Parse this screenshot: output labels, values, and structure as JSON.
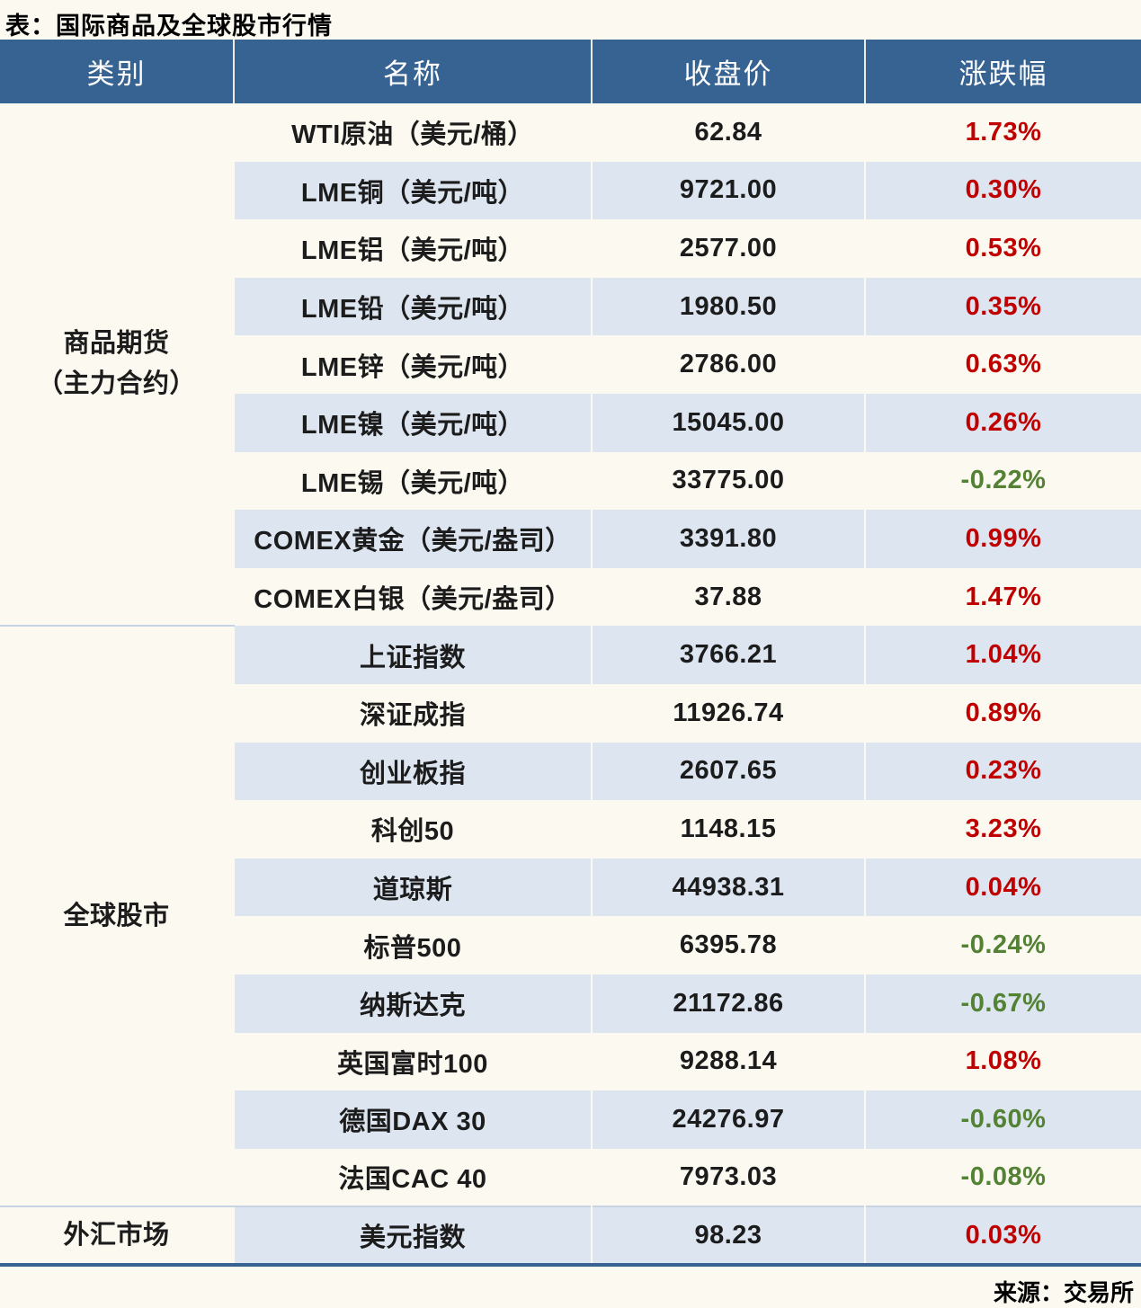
{
  "title": "表：国际商品及全球股市行情",
  "source": "来源：交易所",
  "headers": [
    "类别",
    "名称",
    "收盘价",
    "涨跌幅"
  ],
  "colors": {
    "header_bg": "#366391",
    "stripe_blue": "#dce5f0",
    "row_cream": "#fbf9f0",
    "positive_red": "#c00000",
    "negative_green": "#548235"
  },
  "groups": [
    {
      "category": "商品期货（主力合约）",
      "label_lines": [
        "商品期货",
        "（主力合约）"
      ],
      "rows": [
        {
          "name": "WTI原油（美元/桶）",
          "close": "62.84",
          "change": "1.73%",
          "direction": "up"
        },
        {
          "name": "LME铜（美元/吨）",
          "close": "9721.00",
          "change": "0.30%",
          "direction": "up"
        },
        {
          "name": "LME铝（美元/吨）",
          "close": "2577.00",
          "change": "0.53%",
          "direction": "up"
        },
        {
          "name": "LME铅（美元/吨）",
          "close": "1980.50",
          "change": "0.35%",
          "direction": "up"
        },
        {
          "name": "LME锌（美元/吨）",
          "close": "2786.00",
          "change": "0.63%",
          "direction": "up"
        },
        {
          "name": "LME镍（美元/吨）",
          "close": "15045.00",
          "change": "0.26%",
          "direction": "up"
        },
        {
          "name": "LME锡（美元/吨）",
          "close": "33775.00",
          "change": "-0.22%",
          "direction": "down"
        },
        {
          "name": "COMEX黄金（美元/盎司）",
          "close": "3391.80",
          "change": "0.99%",
          "direction": "up"
        },
        {
          "name": "COMEX白银（美元/盎司）",
          "close": "37.88",
          "change": "1.47%",
          "direction": "up"
        }
      ]
    },
    {
      "category": "全球股市",
      "label_lines": [
        "全球股市"
      ],
      "rows": [
        {
          "name": "上证指数",
          "close": "3766.21",
          "change": "1.04%",
          "direction": "up"
        },
        {
          "name": "深证成指",
          "close": "11926.74",
          "change": "0.89%",
          "direction": "up"
        },
        {
          "name": "创业板指",
          "close": "2607.65",
          "change": "0.23%",
          "direction": "up"
        },
        {
          "name": "科创50",
          "close": "1148.15",
          "change": "3.23%",
          "direction": "up"
        },
        {
          "name": "道琼斯",
          "close": "44938.31",
          "change": "0.04%",
          "direction": "up"
        },
        {
          "name": "标普500",
          "close": "6395.78",
          "change": "-0.24%",
          "direction": "down"
        },
        {
          "name": "纳斯达克",
          "close": "21172.86",
          "change": "-0.67%",
          "direction": "down"
        },
        {
          "name": "英国富时100",
          "close": "9288.14",
          "change": "1.08%",
          "direction": "up"
        },
        {
          "name": "德国DAX 30",
          "close": "24276.97",
          "change": "-0.60%",
          "direction": "down"
        },
        {
          "name": "法国CAC 40",
          "close": "7973.03",
          "change": "-0.08%",
          "direction": "down"
        }
      ]
    },
    {
      "category": "外汇市场",
      "label_lines": [
        "外汇市场"
      ],
      "rows": [
        {
          "name": "美元指数",
          "close": "98.23",
          "change": "0.03%",
          "direction": "up"
        }
      ]
    }
  ],
  "chart_data": {
    "type": "table",
    "title": "表：国际商品及全球股市行情",
    "columns": [
      "类别",
      "名称",
      "收盘价",
      "涨跌幅"
    ],
    "rows": [
      [
        "商品期货（主力合约）",
        "WTI原油（美元/桶）",
        62.84,
        "1.73%"
      ],
      [
        "商品期货（主力合约）",
        "LME铜（美元/吨）",
        9721.0,
        "0.30%"
      ],
      [
        "商品期货（主力合约）",
        "LME铝（美元/吨）",
        2577.0,
        "0.53%"
      ],
      [
        "商品期货（主力合约）",
        "LME铅（美元/吨）",
        1980.5,
        "0.35%"
      ],
      [
        "商品期货（主力合约）",
        "LME锌（美元/吨）",
        2786.0,
        "0.63%"
      ],
      [
        "商品期货（主力合约）",
        "LME镍（美元/吨）",
        15045.0,
        "0.26%"
      ],
      [
        "商品期货（主力合约）",
        "LME锡（美元/吨）",
        33775.0,
        "-0.22%"
      ],
      [
        "商品期货（主力合约）",
        "COMEX黄金（美元/盎司）",
        3391.8,
        "0.99%"
      ],
      [
        "商品期货（主力合约）",
        "COMEX白银（美元/盎司）",
        37.88,
        "1.47%"
      ],
      [
        "全球股市",
        "上证指数",
        3766.21,
        "1.04%"
      ],
      [
        "全球股市",
        "深证成指",
        11926.74,
        "0.89%"
      ],
      [
        "全球股市",
        "创业板指",
        2607.65,
        "0.23%"
      ],
      [
        "全球股市",
        "科创50",
        1148.15,
        "3.23%"
      ],
      [
        "全球股市",
        "道琼斯",
        44938.31,
        "0.04%"
      ],
      [
        "全球股市",
        "标普500",
        6395.78,
        "-0.24%"
      ],
      [
        "全球股市",
        "纳斯达克",
        21172.86,
        "-0.67%"
      ],
      [
        "全球股市",
        "英国富时100",
        9288.14,
        "1.08%"
      ],
      [
        "全球股市",
        "德国DAX 30",
        24276.97,
        "-0.60%"
      ],
      [
        "全球股市",
        "法国CAC 40",
        7973.03,
        "-0.08%"
      ],
      [
        "外汇市场",
        "美元指数",
        98.23,
        "0.03%"
      ]
    ],
    "notes": "positive changes shown in red, negative in green; source footer 来源：交易所"
  }
}
